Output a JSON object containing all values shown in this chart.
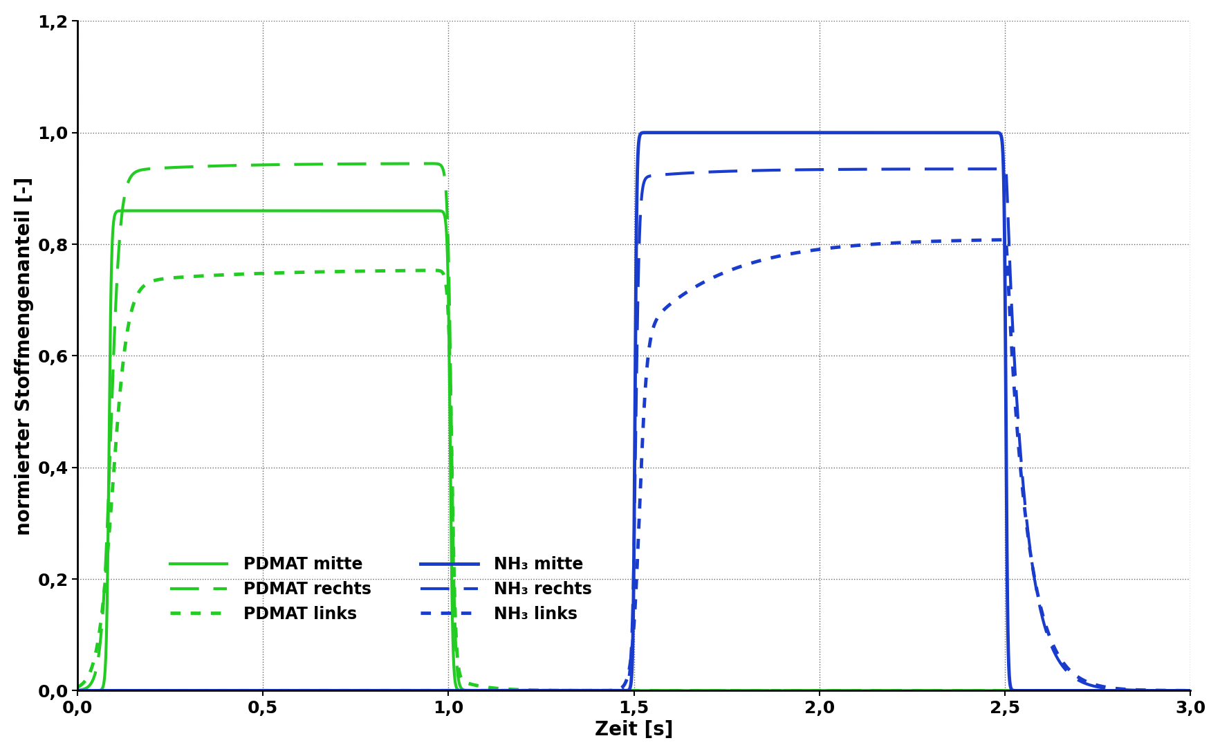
{
  "xlabel": "Zeit [s]",
  "ylabel": "normierter Stoffmengenanteil [-]",
  "xlim": [
    0.0,
    3.0
  ],
  "ylim": [
    0.0,
    1.2
  ],
  "xticks": [
    0.0,
    0.5,
    1.0,
    1.5,
    2.0,
    2.5,
    3.0
  ],
  "yticks": [
    0.0,
    0.2,
    0.4,
    0.6,
    0.8,
    1.0,
    1.2
  ],
  "color_green": "#22cc22",
  "color_blue": "#1a3ccc",
  "legend_labels": [
    "PDMAT mitte",
    "PDMAT rechts",
    "PDMAT links",
    "NH₃ mitte",
    "NH₃ rechts",
    "NH₃ links"
  ],
  "pdmat_mitte_plateau": 0.86,
  "pdmat_rechts_plateau": 0.945,
  "pdmat_links_plateau": 0.755,
  "nh3_mitte_plateau": 1.0,
  "nh3_rechts_plateau": 0.935,
  "nh3_links_plateau": 0.81
}
